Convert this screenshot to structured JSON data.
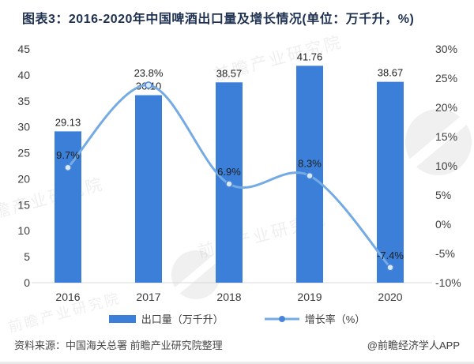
{
  "title": "图表3：2016-2020年中国啤酒出口量及增长情况(单位：万千升，%)",
  "chart_data": {
    "type": "bar+line combo",
    "categories": [
      "2016",
      "2017",
      "2018",
      "2019",
      "2020"
    ],
    "series": [
      {
        "name": "出口量（万千升）",
        "type": "bar",
        "axis": "left",
        "color": "#3b7fd8",
        "values": [
          29.13,
          36.1,
          38.57,
          41.76,
          38.67
        ],
        "labels": [
          "29.13",
          "36.10",
          "38.57",
          "41.76",
          "38.67"
        ]
      },
      {
        "name": "增长率（%）",
        "type": "line",
        "axis": "right",
        "color": "#75abe4",
        "marker_fill": "#d9e9f9",
        "marker_stroke": "#4a86d8",
        "values": [
          9.7,
          23.8,
          6.9,
          8.3,
          -7.4
        ],
        "labels": [
          "9.7%",
          "23.8%",
          "6.9%",
          "8.3%",
          "-7.4%"
        ]
      }
    ],
    "left_axis": {
      "min": 0,
      "max": 45,
      "step": 5,
      "ticks": [
        "45",
        "40",
        "35",
        "30",
        "25",
        "20",
        "15",
        "10",
        "5",
        "0"
      ]
    },
    "right_axis": {
      "min": -10,
      "max": 30,
      "step": 5,
      "ticks": [
        "30%",
        "25%",
        "20%",
        "15%",
        "10%",
        "5%",
        "0%",
        "-5%",
        "-10%"
      ]
    },
    "grid": false,
    "legend_position": "bottom",
    "title": "图表3：2016-2020年中国啤酒出口量及增长情况(单位：万千升，%)"
  },
  "legend": {
    "items": [
      {
        "label": "出口量（万千升）",
        "type": "bar",
        "color": "#3b7fd8"
      },
      {
        "label": "增长率（%）",
        "type": "line",
        "color": "#75abe4",
        "dot_color": "#4a86d8"
      }
    ]
  },
  "footer": {
    "source": "资料来源：中国海关总署 前瞻产业研究院整理",
    "credit": "@前瞻经济学人APP"
  },
  "watermark": {
    "text": "前瞻产业研究院"
  }
}
